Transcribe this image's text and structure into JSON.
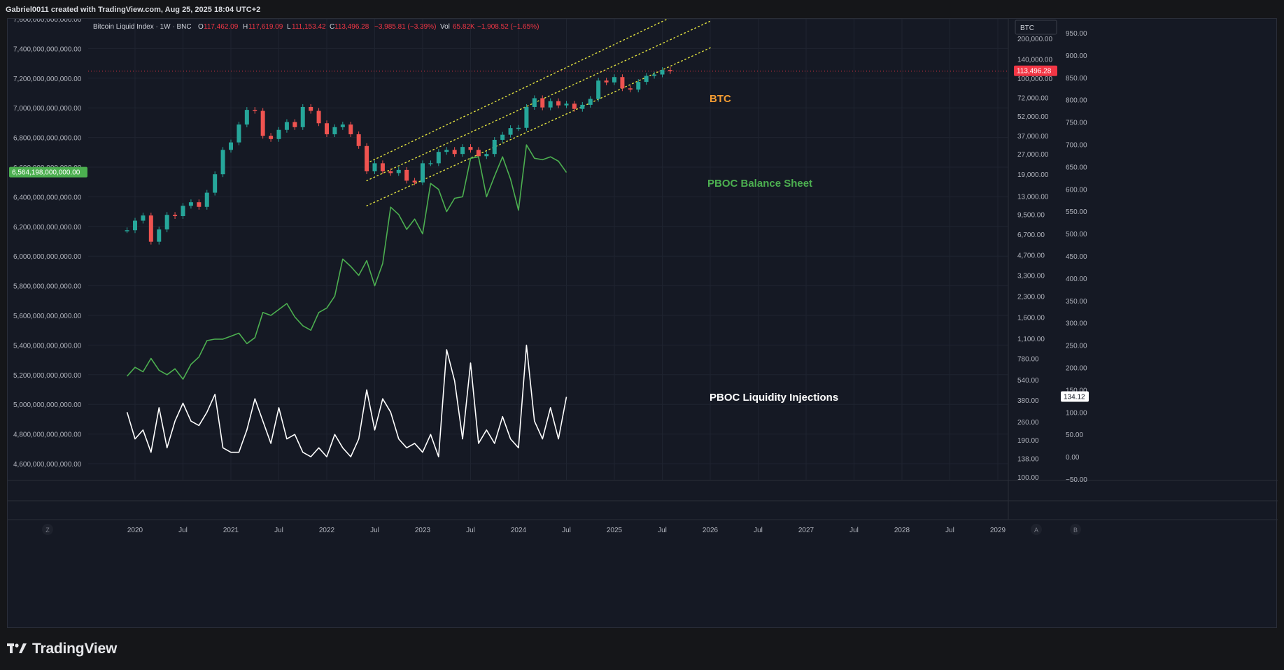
{
  "header": {
    "attribution": "Gabriel0011 created with TradingView.com, Aug 25, 2025 18:04 UTC+2"
  },
  "legend": {
    "symbol": "Bitcoin Liquid Index · 1W · BNC",
    "o_label": "O",
    "o_value": "117,462.09",
    "h_label": "H",
    "h_value": "117,619.09",
    "l_label": "L",
    "l_value": "111,153.42",
    "c_label": "C",
    "c_value": "113,496.28",
    "change": "−3,985.81 (−3.39%)",
    "vol_label": "Vol",
    "vol_value": "65.82K",
    "vol_change": "−1,908.52 (−1.65%)"
  },
  "symbol_box": "BTC",
  "annotations": [
    {
      "id": "btc",
      "text": "BTC",
      "color": "#f39c33"
    },
    {
      "id": "pboc-balance",
      "text": "PBOC Balance Sheet",
      "color": "#4caf50"
    },
    {
      "id": "pboc-liquidity",
      "text": "PBOC Liquidity Injections",
      "color": "#ffffff"
    }
  ],
  "chart_data": {
    "type": "line",
    "left_axis": {
      "ticks": [
        "7,600,000,000,000.00",
        "7,400,000,000,000.00",
        "7,200,000,000,000.00",
        "7,000,000,000,000.00",
        "6,800,000,000,000.00",
        "6,600,000,000,000.00",
        "6,400,000,000,000.00",
        "6,200,000,000,000.00",
        "6,000,000,000,000.00",
        "5,800,000,000,000.00",
        "5,600,000,000,000.00",
        "5,400,000,000,000.00",
        "5,200,000,000,000.00",
        "5,000,000,000,000.00",
        "4,800,000,000,000.00",
        "4,600,000,000,000.00"
      ],
      "current_label": "6,564,198,000,000.00",
      "current_color": "#4caf50"
    },
    "right_axis_1": {
      "scale": "log",
      "ticks": [
        "200,000.00",
        "140,000.00",
        "100,000.00",
        "72,000.00",
        "52,000.00",
        "37,000.00",
        "27,000.00",
        "19,000.00",
        "13,000.00",
        "9,500.00",
        "6,700.00",
        "4,700.00",
        "3,300.00",
        "2,300.00",
        "1,600.00",
        "1,100.00",
        "780.00",
        "540.00",
        "380.00",
        "260.00",
        "190.00",
        "138.00",
        "100.00"
      ],
      "current_label": "113,496.28",
      "current_color": "#f23645"
    },
    "right_axis_2": {
      "ticks": [
        "950.00",
        "900.00",
        "850.00",
        "800.00",
        "750.00",
        "700.00",
        "650.00",
        "600.00",
        "550.00",
        "500.00",
        "450.00",
        "400.00",
        "350.00",
        "300.00",
        "250.00",
        "200.00",
        "150.00",
        "100.00",
        "50.00",
        "0.00",
        "−50.00"
      ],
      "current_label": "134.12"
    },
    "x_axis": {
      "ticks": [
        "2020",
        "Jul",
        "2021",
        "Jul",
        "2022",
        "Jul",
        "2023",
        "Jul",
        "2024",
        "Jul",
        "2025",
        "Jul",
        "2026",
        "Jul",
        "2027",
        "Jul",
        "2028",
        "Jul",
        "2029"
      ]
    },
    "series": [
      {
        "name": "BTC",
        "type": "candlestick",
        "axis": "right_axis_1",
        "up_color": "#26a69a",
        "down_color": "#ef5350",
        "points": [
          [
            "2019-12",
            7200
          ],
          [
            "2020-01",
            8500
          ],
          [
            "2020-02",
            9300
          ],
          [
            "2020-03",
            5900
          ],
          [
            "2020-04",
            7300
          ],
          [
            "2020-05",
            9400
          ],
          [
            "2020-06",
            9200
          ],
          [
            "2020-07",
            11000
          ],
          [
            "2020-08",
            11700
          ],
          [
            "2020-09",
            10800
          ],
          [
            "2020-10",
            13800
          ],
          [
            "2020-11",
            19000
          ],
          [
            "2020-12",
            29000
          ],
          [
            "2021-01",
            33000
          ],
          [
            "2021-02",
            45000
          ],
          [
            "2021-03",
            58000
          ],
          [
            "2021-04",
            57000
          ],
          [
            "2021-05",
            37000
          ],
          [
            "2021-06",
            35000
          ],
          [
            "2021-07",
            41000
          ],
          [
            "2021-08",
            47000
          ],
          [
            "2021-09",
            43000
          ],
          [
            "2021-10",
            61000
          ],
          [
            "2021-11",
            57000
          ],
          [
            "2021-12",
            46000
          ],
          [
            "2022-01",
            38000
          ],
          [
            "2022-02",
            43000
          ],
          [
            "2022-03",
            45000
          ],
          [
            "2022-04",
            38000
          ],
          [
            "2022-05",
            31000
          ],
          [
            "2022-06",
            20000
          ],
          [
            "2022-07",
            23000
          ],
          [
            "2022-08",
            20000
          ],
          [
            "2022-09",
            19400
          ],
          [
            "2022-10",
            20500
          ],
          [
            "2022-11",
            17000
          ],
          [
            "2022-12",
            16500
          ],
          [
            "2023-01",
            23000
          ],
          [
            "2023-02",
            23000
          ],
          [
            "2023-03",
            28000
          ],
          [
            "2023-04",
            29000
          ],
          [
            "2023-05",
            27000
          ],
          [
            "2023-06",
            30500
          ],
          [
            "2023-07",
            29000
          ],
          [
            "2023-08",
            26000
          ],
          [
            "2023-09",
            27000
          ],
          [
            "2023-10",
            34500
          ],
          [
            "2023-11",
            37700
          ],
          [
            "2023-12",
            42300
          ],
          [
            "2024-01",
            42500
          ],
          [
            "2024-02",
            61000
          ],
          [
            "2024-03",
            71000
          ],
          [
            "2024-04",
            60500
          ],
          [
            "2024-05",
            67500
          ],
          [
            "2024-06",
            62700
          ],
          [
            "2024-07",
            64600
          ],
          [
            "2024-08",
            59000
          ],
          [
            "2024-09",
            63300
          ],
          [
            "2024-10",
            70200
          ],
          [
            "2024-11",
            96400
          ],
          [
            "2024-12",
            93400
          ],
          [
            "2025-01",
            102400
          ],
          [
            "2025-02",
            84300
          ],
          [
            "2025-03",
            82500
          ],
          [
            "2025-04",
            94200
          ],
          [
            "2025-05",
            104600
          ],
          [
            "2025-06",
            107100
          ],
          [
            "2025-07",
            115700
          ],
          [
            "2025-08",
            113496
          ]
        ]
      },
      {
        "name": "PBOC Balance Sheet",
        "axis": "left_axis",
        "color": "#4caf50",
        "points": [
          [
            "2019-12",
            5190000000000
          ],
          [
            "2020-01",
            5250000000000
          ],
          [
            "2020-02",
            5220000000000
          ],
          [
            "2020-03",
            5310000000000
          ],
          [
            "2020-04",
            5230000000000
          ],
          [
            "2020-05",
            5200000000000
          ],
          [
            "2020-06",
            5240000000000
          ],
          [
            "2020-07",
            5170000000000
          ],
          [
            "2020-08",
            5270000000000
          ],
          [
            "2020-09",
            5320000000000
          ],
          [
            "2020-10",
            5430000000000
          ],
          [
            "2020-11",
            5440000000000
          ],
          [
            "2020-12",
            5440000000000
          ],
          [
            "2021-01",
            5460000000000
          ],
          [
            "2021-02",
            5480000000000
          ],
          [
            "2021-03",
            5410000000000
          ],
          [
            "2021-04",
            5450000000000
          ],
          [
            "2021-05",
            5620000000000
          ],
          [
            "2021-06",
            5600000000000
          ],
          [
            "2021-07",
            5640000000000
          ],
          [
            "2021-08",
            5680000000000
          ],
          [
            "2021-09",
            5590000000000
          ],
          [
            "2021-10",
            5530000000000
          ],
          [
            "2021-11",
            5500000000000
          ],
          [
            "2021-12",
            5620000000000
          ],
          [
            "2022-01",
            5650000000000
          ],
          [
            "2022-02",
            5730000000000
          ],
          [
            "2022-03",
            5980000000000
          ],
          [
            "2022-04",
            5930000000000
          ],
          [
            "2022-05",
            5870000000000
          ],
          [
            "2022-06",
            5970000000000
          ],
          [
            "2022-07",
            5800000000000
          ],
          [
            "2022-08",
            5950000000000
          ],
          [
            "2022-09",
            6330000000000
          ],
          [
            "2022-10",
            6280000000000
          ],
          [
            "2022-11",
            6180000000000
          ],
          [
            "2022-12",
            6250000000000
          ],
          [
            "2023-01",
            6150000000000
          ],
          [
            "2023-02",
            6490000000000
          ],
          [
            "2023-03",
            6450000000000
          ],
          [
            "2023-04",
            6300000000000
          ],
          [
            "2023-05",
            6390000000000
          ],
          [
            "2023-06",
            6400000000000
          ],
          [
            "2023-07",
            6660000000000
          ],
          [
            "2023-08",
            6670000000000
          ],
          [
            "2023-09",
            6400000000000
          ],
          [
            "2023-10",
            6540000000000
          ],
          [
            "2023-11",
            6670000000000
          ],
          [
            "2023-12",
            6520000000000
          ],
          [
            "2024-01",
            6310000000000
          ],
          [
            "2024-02",
            6750000000000
          ],
          [
            "2024-03",
            6660000000000
          ],
          [
            "2024-04",
            6650000000000
          ],
          [
            "2024-05",
            6670000000000
          ],
          [
            "2024-06",
            6640000000000
          ],
          [
            "2024-07",
            6564198000000
          ]
        ]
      },
      {
        "name": "PBOC Liquidity Injections",
        "axis": "right_axis_2",
        "color": "#ffffff",
        "points": [
          [
            "2019-12",
            100
          ],
          [
            "2020-01",
            40
          ],
          [
            "2020-02",
            60
          ],
          [
            "2020-03",
            10
          ],
          [
            "2020-04",
            110
          ],
          [
            "2020-05",
            20
          ],
          [
            "2020-06",
            80
          ],
          [
            "2020-07",
            120
          ],
          [
            "2020-08",
            80
          ],
          [
            "2020-09",
            70
          ],
          [
            "2020-10",
            100
          ],
          [
            "2020-11",
            140
          ],
          [
            "2020-12",
            20
          ],
          [
            "2021-01",
            10
          ],
          [
            "2021-02",
            10
          ],
          [
            "2021-03",
            60
          ],
          [
            "2021-04",
            130
          ],
          [
            "2021-05",
            80
          ],
          [
            "2021-06",
            30
          ],
          [
            "2021-07",
            110
          ],
          [
            "2021-08",
            40
          ],
          [
            "2021-09",
            50
          ],
          [
            "2021-10",
            10
          ],
          [
            "2021-11",
            0
          ],
          [
            "2021-12",
            20
          ],
          [
            "2022-01",
            0
          ],
          [
            "2022-02",
            50
          ],
          [
            "2022-03",
            20
          ],
          [
            "2022-04",
            0
          ],
          [
            "2022-05",
            40
          ],
          [
            "2022-06",
            150
          ],
          [
            "2022-07",
            60
          ],
          [
            "2022-08",
            130
          ],
          [
            "2022-09",
            100
          ],
          [
            "2022-10",
            40
          ],
          [
            "2022-11",
            20
          ],
          [
            "2022-12",
            30
          ],
          [
            "2023-01",
            10
          ],
          [
            "2023-02",
            50
          ],
          [
            "2023-03",
            0
          ],
          [
            "2023-04",
            240
          ],
          [
            "2023-05",
            170
          ],
          [
            "2023-06",
            40
          ],
          [
            "2023-07",
            210
          ],
          [
            "2023-08",
            30
          ],
          [
            "2023-09",
            60
          ],
          [
            "2023-10",
            30
          ],
          [
            "2023-11",
            90
          ],
          [
            "2023-12",
            40
          ],
          [
            "2024-01",
            20
          ],
          [
            "2024-02",
            250
          ],
          [
            "2024-03",
            80
          ],
          [
            "2024-04",
            40
          ],
          [
            "2024-05",
            110
          ],
          [
            "2024-06",
            40
          ],
          [
            "2024-07",
            134.12
          ]
        ]
      }
    ],
    "trend_channel": {
      "style": "dotted",
      "color": "#e6e640",
      "lines": 3
    },
    "horizontal_line": {
      "value": 113496.28,
      "color": "#f23645",
      "style": "dotted"
    },
    "grid": "on",
    "legend_position": "top-left"
  },
  "bottom_toolbar": {
    "z_button": "Z",
    "a_button": "A",
    "b_button": "B"
  },
  "brand": {
    "logo": "tradingview-logo-icon",
    "name": "TradingView"
  }
}
